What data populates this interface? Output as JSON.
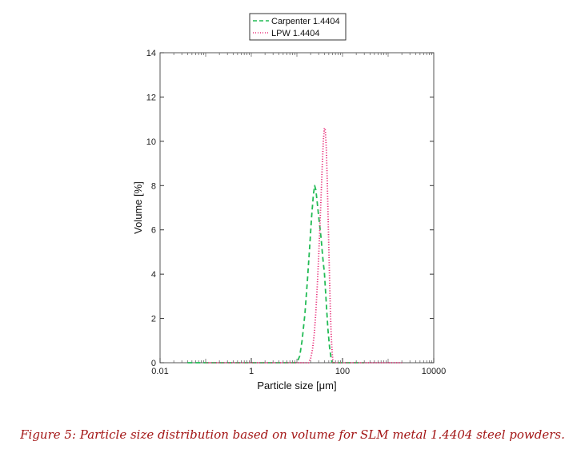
{
  "chart_data": {
    "type": "line",
    "xscale": "log",
    "xlim": [
      0.01,
      10000
    ],
    "ylim": [
      0,
      14
    ],
    "xticks": [
      0.01,
      1,
      100,
      10000
    ],
    "xtick_labels": [
      "0.01",
      "1",
      "100",
      "10000"
    ],
    "yticks": [
      0,
      2,
      4,
      6,
      8,
      10,
      12,
      14
    ],
    "ytick_labels": [
      "0",
      "2",
      "4",
      "6",
      "8",
      "10",
      "12",
      "14"
    ],
    "xlabel": "Particle size [μm]",
    "ylabel": "Volume [%]",
    "grid": false,
    "legend_position": "top-center",
    "series": [
      {
        "name": "Carpenter 1.4404",
        "color": "#22bb55",
        "dash": "dashed",
        "points": [
          [
            0.04,
            0
          ],
          [
            10,
            0
          ],
          [
            11.5,
            0.3
          ],
          [
            13,
            1.0
          ],
          [
            15,
            2.2
          ],
          [
            17,
            3.7
          ],
          [
            19,
            5.2
          ],
          [
            21,
            6.6
          ],
          [
            23,
            7.6
          ],
          [
            24.5,
            8.0
          ],
          [
            26,
            7.8
          ],
          [
            28,
            7.2
          ],
          [
            30,
            6.6
          ],
          [
            32,
            6.1
          ],
          [
            34,
            5.6
          ],
          [
            36,
            5.0
          ],
          [
            38,
            4.5
          ],
          [
            40,
            4.1
          ],
          [
            42,
            3.4
          ],
          [
            45,
            2.4
          ],
          [
            48,
            1.5
          ],
          [
            52,
            0.7
          ],
          [
            57,
            0.1
          ],
          [
            60,
            0
          ],
          [
            300,
            0
          ]
        ]
      },
      {
        "name": "LPW 1.4404",
        "color": "#e8307a",
        "dash": "dotted",
        "points": [
          [
            0.1,
            0
          ],
          [
            18,
            0
          ],
          [
            20,
            0.2
          ],
          [
            22,
            0.6
          ],
          [
            24,
            1.3
          ],
          [
            26,
            2.3
          ],
          [
            28,
            3.5
          ],
          [
            30,
            4.8
          ],
          [
            32,
            6.2
          ],
          [
            34,
            7.6
          ],
          [
            36,
            8.9
          ],
          [
            38,
            10.0
          ],
          [
            40,
            10.6
          ],
          [
            42,
            10.5
          ],
          [
            44,
            9.7
          ],
          [
            46,
            8.4
          ],
          [
            48,
            6.9
          ],
          [
            50,
            5.3
          ],
          [
            52,
            3.8
          ],
          [
            54,
            2.5
          ],
          [
            56,
            1.5
          ],
          [
            58,
            0.8
          ],
          [
            60,
            0.3
          ],
          [
            62,
            0
          ],
          [
            2000,
            0
          ]
        ]
      }
    ]
  },
  "caption": "Figure 5: Particle size distribution based on volume for SLM metal 1.4404 steel powders."
}
